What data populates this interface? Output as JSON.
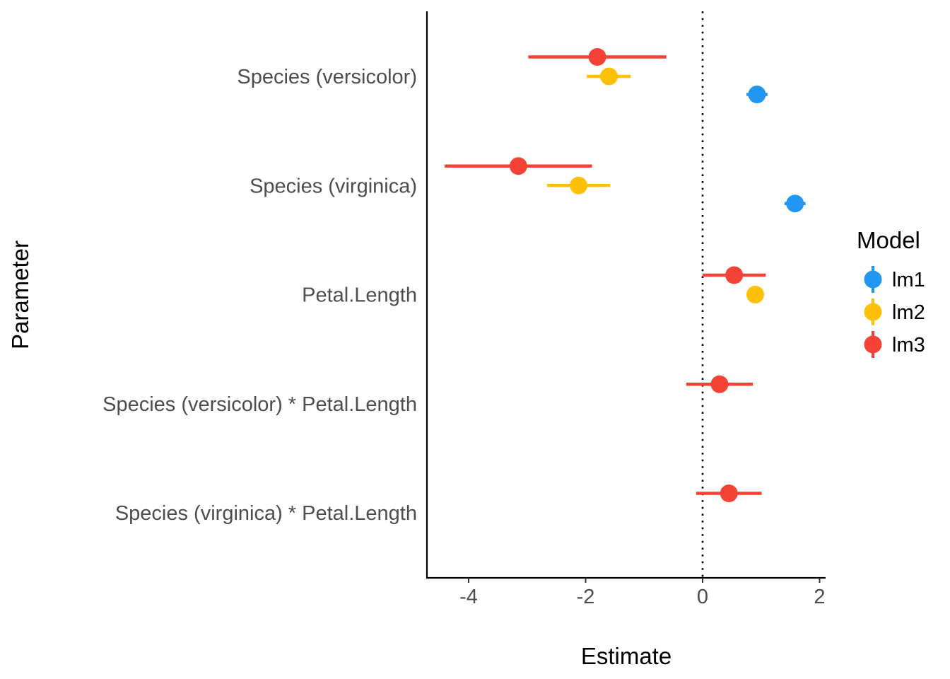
{
  "chart_data": {
    "type": "dot-whisker",
    "xlabel": "Estimate",
    "ylabel": "Parameter",
    "xlim": [
      -4.7,
      2.1
    ],
    "xticks": [
      -4,
      -2,
      0,
      2
    ],
    "xtick_labels": [
      "-4",
      "-2",
      "0",
      "2"
    ],
    "reference_line_x": 0,
    "grid": false,
    "parameters": [
      "Species (versicolor)",
      "Species (virginica)",
      "Petal.Length",
      "Species (versicolor) * Petal.Length",
      "Species (virginica) * Petal.Length"
    ],
    "legend": {
      "title": "Model",
      "position": "right"
    },
    "series": [
      {
        "name": "lm1",
        "color": "#2196F3",
        "points": [
          {
            "parameter": "Species (versicolor)",
            "estimate": 0.93,
            "low": 0.75,
            "high": 1.11
          },
          {
            "parameter": "Species (virginica)",
            "estimate": 1.58,
            "low": 1.4,
            "high": 1.76
          }
        ]
      },
      {
        "name": "lm2",
        "color": "#FFC107",
        "points": [
          {
            "parameter": "Species (versicolor)",
            "estimate": -1.6,
            "low": -1.98,
            "high": -1.23
          },
          {
            "parameter": "Species (virginica)",
            "estimate": -2.12,
            "low": -2.66,
            "high": -1.58
          },
          {
            "parameter": "Petal.Length",
            "estimate": 0.9,
            "low": 0.8,
            "high": 1.0
          }
        ]
      },
      {
        "name": "lm3",
        "color": "#F44336",
        "points": [
          {
            "parameter": "Species (versicolor)",
            "estimate": -1.8,
            "low": -2.98,
            "high": -0.62
          },
          {
            "parameter": "Species (virginica)",
            "estimate": -3.15,
            "low": -4.41,
            "high": -1.89
          },
          {
            "parameter": "Petal.Length",
            "estimate": 0.54,
            "low": 0.0,
            "high": 1.08
          },
          {
            "parameter": "Species (versicolor) * Petal.Length",
            "estimate": 0.29,
            "low": -0.28,
            "high": 0.86
          },
          {
            "parameter": "Species (virginica) * Petal.Length",
            "estimate": 0.45,
            "low": -0.11,
            "high": 1.01
          }
        ]
      }
    ]
  }
}
